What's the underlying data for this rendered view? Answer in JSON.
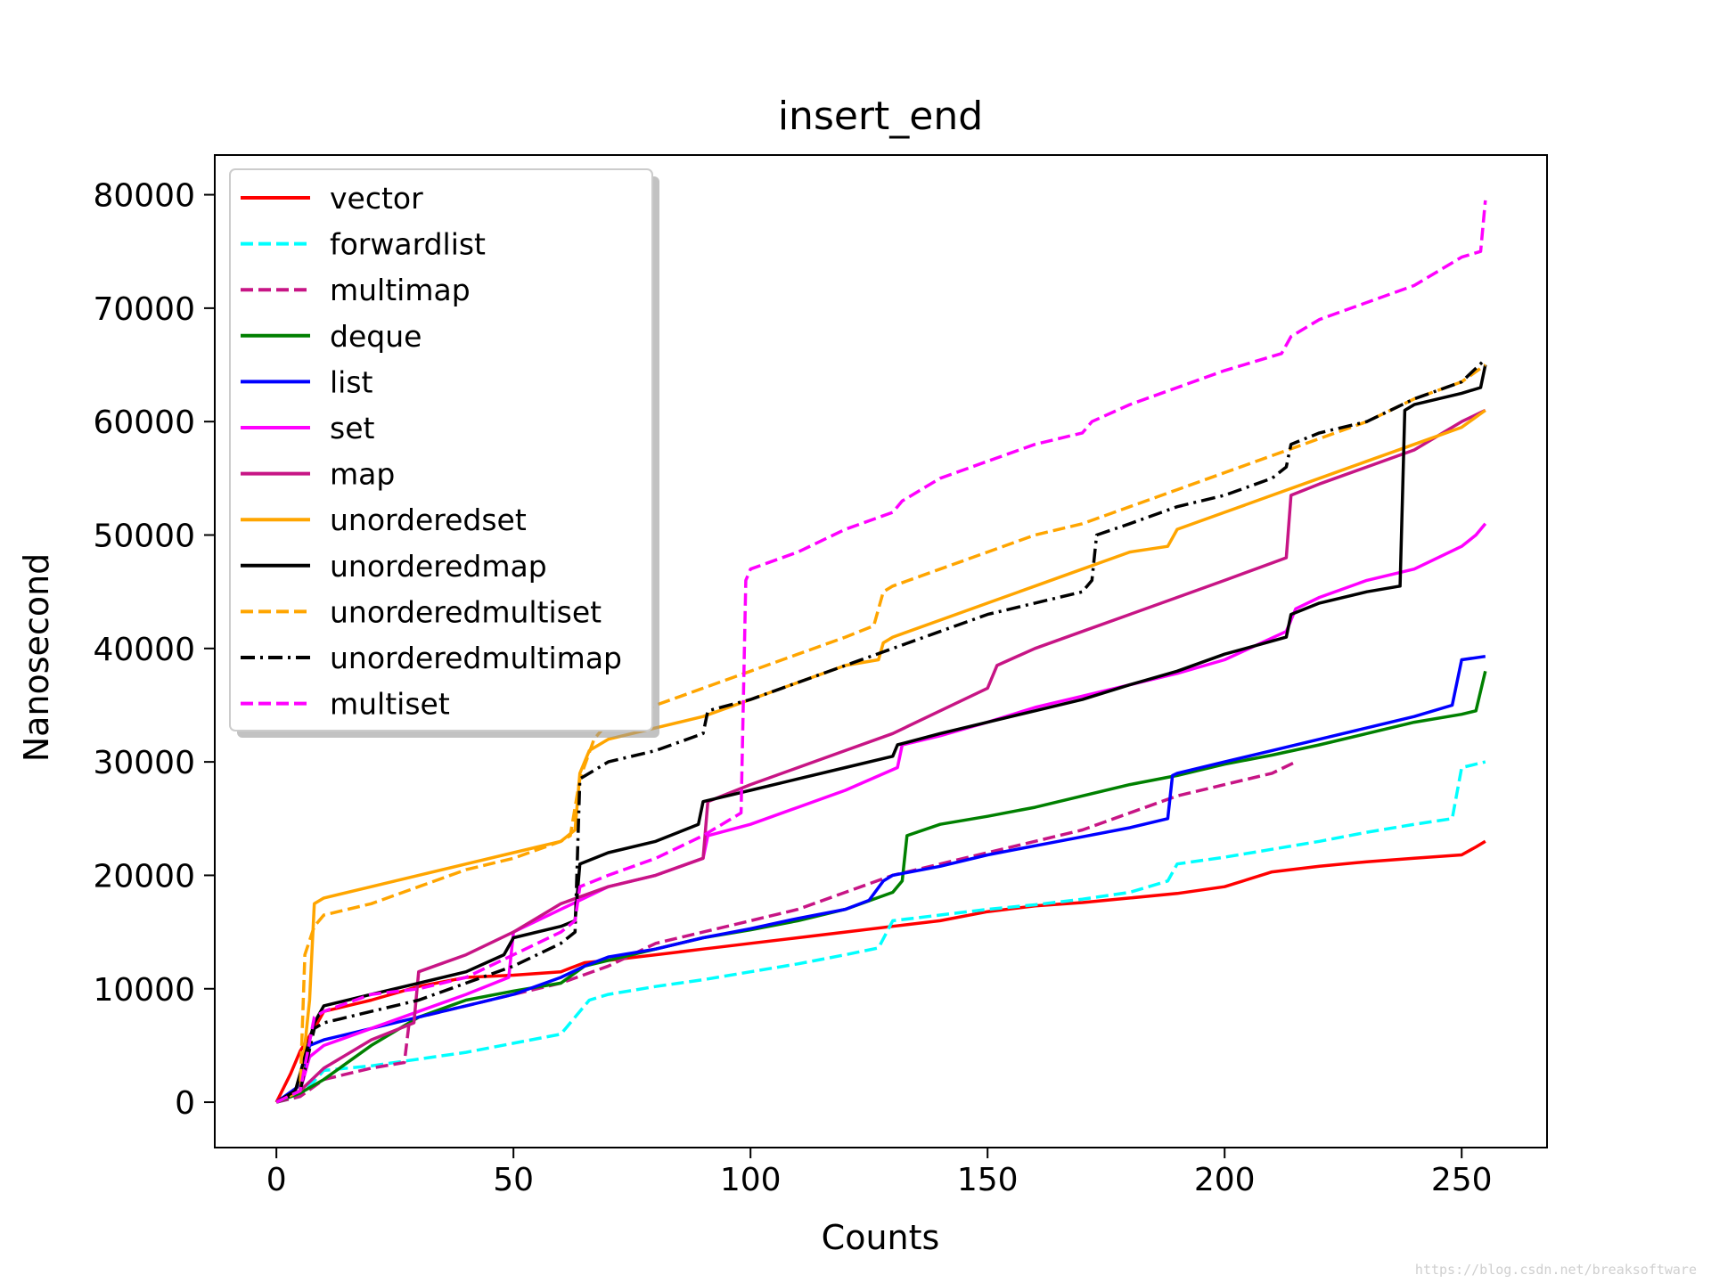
{
  "chart_data": {
    "type": "line",
    "title": "insert_end",
    "xlabel": "Counts",
    "ylabel": "Nanosecond",
    "xlim": [
      -13,
      268
    ],
    "ylim": [
      -4000,
      83500
    ],
    "xticks": [
      0,
      50,
      100,
      150,
      200,
      250
    ],
    "xtick_labels": [
      "0",
      "50",
      "100",
      "150",
      "200",
      "250"
    ],
    "yticks": [
      0,
      10000,
      20000,
      30000,
      40000,
      50000,
      60000,
      70000,
      80000
    ],
    "ytick_labels": [
      "0",
      "10000",
      "20000",
      "30000",
      "40000",
      "50000",
      "60000",
      "70000",
      "80000"
    ],
    "grid": false,
    "legend_position": "top-left",
    "series": [
      {
        "name": "vector",
        "color": "#ff0000",
        "style": "solid",
        "x": [
          0,
          3,
          5,
          8,
          10,
          20,
          30,
          40,
          50,
          60,
          65,
          70,
          80,
          90,
          100,
          110,
          120,
          130,
          140,
          150,
          160,
          170,
          180,
          190,
          200,
          210,
          220,
          230,
          240,
          250,
          253,
          255
        ],
        "y": [
          0,
          2500,
          4500,
          6500,
          8000,
          9000,
          10200,
          11000,
          11200,
          11500,
          12300,
          12500,
          13000,
          13500,
          14000,
          14500,
          15000,
          15500,
          16000,
          16800,
          17300,
          17600,
          18000,
          18400,
          19000,
          20300,
          20800,
          21200,
          21500,
          21800,
          22500,
          23000
        ]
      },
      {
        "name": "forwardlist",
        "color": "#00ffff",
        "style": "dashed",
        "x": [
          0,
          5,
          10,
          20,
          30,
          40,
          50,
          60,
          66,
          70,
          80,
          90,
          100,
          110,
          120,
          127,
          130,
          140,
          150,
          160,
          170,
          180,
          188,
          190,
          200,
          210,
          220,
          230,
          240,
          248,
          250,
          255
        ],
        "y": [
          0,
          500,
          2800,
          3200,
          3800,
          4400,
          5200,
          6000,
          9000,
          9500,
          10200,
          10800,
          11500,
          12200,
          13000,
          13600,
          16000,
          16500,
          17000,
          17400,
          17900,
          18500,
          19500,
          21000,
          21600,
          22300,
          23000,
          23800,
          24500,
          25000,
          29500,
          30000
        ]
      },
      {
        "name": "multimap",
        "color": "#c71585",
        "style": "dashed",
        "x": [
          0,
          5,
          10,
          20,
          27,
          28,
          30,
          40,
          50,
          60,
          70,
          80,
          90,
          100,
          110,
          120,
          130,
          140,
          150,
          160,
          170,
          180,
          190,
          200,
          210,
          215
        ],
        "y": [
          0,
          500,
          2000,
          3000,
          3500,
          7000,
          7500,
          8500,
          9500,
          10500,
          12000,
          14000,
          15000,
          16000,
          17000,
          18500,
          20000,
          21000,
          22000,
          23000,
          24000,
          25500,
          27000,
          28000,
          29000,
          30000
        ]
      },
      {
        "name": "deque",
        "color": "#008000",
        "style": "solid",
        "x": [
          0,
          5,
          10,
          20,
          30,
          40,
          50,
          60,
          65,
          70,
          80,
          90,
          100,
          110,
          120,
          130,
          132,
          133,
          140,
          150,
          160,
          170,
          180,
          190,
          200,
          210,
          220,
          230,
          240,
          250,
          253,
          255
        ],
        "y": [
          0,
          800,
          2000,
          5000,
          7500,
          9000,
          9800,
          10500,
          12000,
          12500,
          13500,
          14500,
          15200,
          16000,
          17000,
          18500,
          19500,
          23500,
          24500,
          25200,
          26000,
          27000,
          28000,
          28800,
          29800,
          30600,
          31500,
          32500,
          33500,
          34200,
          34500,
          38000
        ]
      },
      {
        "name": "list",
        "color": "#0000ff",
        "style": "solid",
        "x": [
          0,
          5,
          7,
          10,
          20,
          30,
          40,
          50,
          60,
          65,
          70,
          80,
          90,
          100,
          110,
          120,
          125,
          128,
          130,
          140,
          150,
          160,
          170,
          180,
          188,
          189,
          190,
          200,
          210,
          220,
          230,
          240,
          248,
          250,
          255
        ],
        "y": [
          0,
          1500,
          5000,
          5500,
          6500,
          7500,
          8500,
          9500,
          11000,
          12000,
          12800,
          13500,
          14500,
          15300,
          16200,
          17000,
          17800,
          19500,
          20000,
          20800,
          21800,
          22600,
          23400,
          24200,
          25000,
          28800,
          29000,
          30000,
          31000,
          32000,
          33000,
          34000,
          35000,
          39000,
          39300
        ]
      },
      {
        "name": "set",
        "color": "#ff00ff",
        "style": "solid",
        "x": [
          0,
          5,
          7,
          10,
          20,
          30,
          40,
          49,
          50,
          60,
          70,
          80,
          90,
          91,
          100,
          110,
          120,
          131,
          132,
          140,
          150,
          160,
          170,
          180,
          190,
          200,
          213,
          215,
          220,
          230,
          240,
          250,
          253,
          255
        ],
        "y": [
          0,
          1000,
          4000,
          5000,
          6500,
          8000,
          9500,
          11000,
          15000,
          17000,
          19000,
          20000,
          21500,
          23500,
          24500,
          26000,
          27500,
          29500,
          31500,
          32300,
          33500,
          34800,
          35800,
          36800,
          37800,
          39000,
          41500,
          43500,
          44500,
          46000,
          47000,
          49000,
          50000,
          51000
        ]
      },
      {
        "name": "map",
        "color": "#c71585",
        "style": "solid",
        "x": [
          0,
          5,
          10,
          20,
          29,
          30,
          40,
          50,
          60,
          70,
          80,
          90,
          91,
          100,
          110,
          120,
          130,
          140,
          150,
          152,
          160,
          170,
          180,
          190,
          200,
          213,
          214,
          220,
          230,
          240,
          250,
          255
        ],
        "y": [
          0,
          1000,
          3000,
          5500,
          7000,
          11500,
          13000,
          15000,
          17500,
          19000,
          20000,
          21500,
          26500,
          28000,
          29500,
          31000,
          32500,
          34500,
          36500,
          38500,
          40000,
          41500,
          43000,
          44500,
          46000,
          48000,
          53500,
          54500,
          56000,
          57500,
          60000,
          61000
        ]
      },
      {
        "name": "unorderedset",
        "color": "#ffa500",
        "style": "solid",
        "x": [
          0,
          5,
          7,
          8,
          10,
          20,
          30,
          40,
          50,
          60,
          63,
          64,
          66,
          70,
          80,
          90,
          100,
          110,
          120,
          127,
          128,
          130,
          140,
          150,
          160,
          170,
          180,
          188,
          190,
          200,
          210,
          220,
          230,
          240,
          250,
          255
        ],
        "y": [
          0,
          1000,
          9000,
          17500,
          18000,
          19000,
          20000,
          21000,
          22000,
          23000,
          24000,
          29000,
          31000,
          32000,
          33000,
          34000,
          35500,
          37000,
          38500,
          39000,
          40500,
          41000,
          42500,
          44000,
          45500,
          47000,
          48500,
          49000,
          50500,
          52000,
          53500,
          55000,
          56500,
          58000,
          59500,
          61000
        ]
      },
      {
        "name": "unorderedmap",
        "color": "#000000",
        "style": "solid",
        "x": [
          0,
          4,
          6,
          8,
          10,
          20,
          30,
          40,
          48,
          50,
          60,
          63,
          64,
          70,
          80,
          89,
          90,
          100,
          110,
          120,
          130,
          131,
          140,
          150,
          160,
          170,
          180,
          190,
          200,
          213,
          214,
          220,
          230,
          237,
          238,
          240,
          250,
          254,
          255
        ],
        "y": [
          0,
          1000,
          4000,
          7000,
          8500,
          9500,
          10500,
          11500,
          13000,
          14500,
          15500,
          16000,
          21000,
          22000,
          23000,
          24500,
          26500,
          27500,
          28500,
          29500,
          30500,
          31500,
          32500,
          33500,
          34500,
          35500,
          36800,
          38000,
          39500,
          41000,
          43000,
          44000,
          45000,
          45500,
          61000,
          61500,
          62500,
          63000,
          65000
        ]
      },
      {
        "name": "unorderedmultiset",
        "color": "#ffa500",
        "style": "dashed",
        "x": [
          0,
          5,
          6,
          8,
          10,
          20,
          30,
          40,
          50,
          60,
          62,
          64,
          67,
          70,
          80,
          90,
          100,
          110,
          120,
          126,
          128,
          130,
          140,
          150,
          160,
          170,
          180,
          190,
          200,
          210,
          220,
          230,
          240,
          250,
          255
        ],
        "y": [
          0,
          1000,
          13000,
          15500,
          16500,
          17500,
          19000,
          20500,
          21500,
          23000,
          23500,
          28500,
          32000,
          33500,
          35000,
          36500,
          38000,
          39500,
          41000,
          42000,
          45000,
          45500,
          47000,
          48500,
          50000,
          51000,
          52500,
          54000,
          55500,
          57000,
          58500,
          60000,
          62000,
          63500,
          65000
        ]
      },
      {
        "name": "unorderedmultimap",
        "color": "#000000",
        "style": "dashdot",
        "x": [
          0,
          5,
          8,
          10,
          20,
          30,
          40,
          50,
          60,
          63,
          64,
          70,
          80,
          90,
          91,
          100,
          110,
          120,
          130,
          140,
          150,
          160,
          170,
          172,
          173,
          180,
          190,
          200,
          210,
          213,
          214,
          220,
          230,
          240,
          250,
          255
        ],
        "y": [
          0,
          1000,
          6500,
          7000,
          8000,
          9000,
          10500,
          12000,
          14000,
          15000,
          28500,
          30000,
          31000,
          32500,
          34500,
          35500,
          37000,
          38500,
          40000,
          41500,
          43000,
          44000,
          45000,
          46000,
          50000,
          51000,
          52500,
          53500,
          55000,
          56000,
          58000,
          59000,
          60000,
          62000,
          63500,
          65500
        ]
      },
      {
        "name": "multiset",
        "color": "#ff00ff",
        "style": "dashed",
        "x": [
          0,
          5,
          8,
          10,
          20,
          30,
          40,
          50,
          60,
          63,
          64,
          70,
          80,
          90,
          98,
          99,
          100,
          110,
          120,
          130,
          132,
          140,
          150,
          160,
          170,
          172,
          180,
          190,
          200,
          212,
          214,
          220,
          230,
          240,
          250,
          254,
          255
        ],
        "y": [
          0,
          1000,
          7500,
          8000,
          9500,
          10000,
          11000,
          13000,
          15000,
          16000,
          19000,
          20000,
          21500,
          23500,
          25500,
          46000,
          47000,
          48500,
          50500,
          52000,
          53000,
          55000,
          56500,
          58000,
          59000,
          60000,
          61500,
          63000,
          64500,
          66000,
          67500,
          69000,
          70500,
          72000,
          74500,
          75000,
          79500
        ]
      }
    ]
  }
}
